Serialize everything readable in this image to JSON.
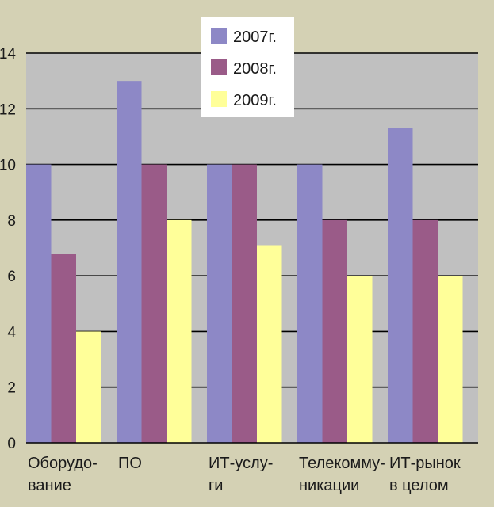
{
  "chart_data": {
    "type": "bar",
    "title": "",
    "xlabel": "",
    "ylabel": "",
    "ylim": [
      0,
      14
    ],
    "yticks": [
      0,
      2,
      4,
      6,
      8,
      10,
      12,
      14
    ],
    "grid": true,
    "legend_position": "top-center",
    "categories": [
      [
        "Оборудо-",
        "вание"
      ],
      [
        "ПО"
      ],
      [
        "ИТ-услу-",
        "ги"
      ],
      [
        "Телекомму-",
        "никации"
      ],
      [
        "ИТ-рынок",
        "в целом"
      ]
    ],
    "series": [
      {
        "name": "2007г.",
        "color": "#8d88c6",
        "values": [
          10,
          13,
          10,
          10,
          11.3
        ]
      },
      {
        "name": "2008г.",
        "color": "#9a5b88",
        "values": [
          6.8,
          10,
          10,
          8,
          8
        ]
      },
      {
        "name": "2009г.",
        "color": "#ffff99",
        "values": [
          4,
          8,
          7.1,
          6,
          6
        ]
      }
    ],
    "plot_background": "#c0c0c0",
    "page_background": "#d4d1b4",
    "grid_color": "#000000"
  }
}
